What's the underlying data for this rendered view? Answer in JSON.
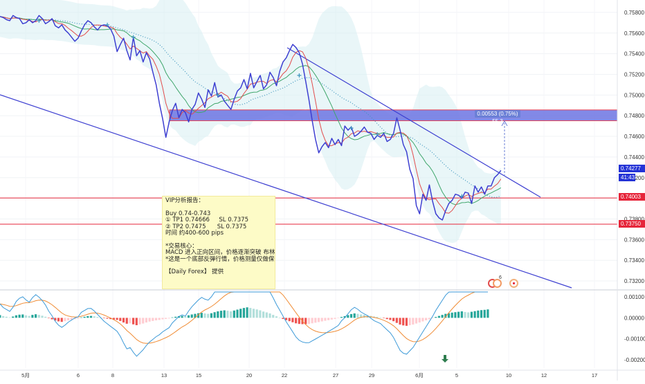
{
  "chart_data": [
    {
      "type": "line",
      "title": "",
      "price_axis": {
        "ticks": [
          "0.75800",
          "0.75600",
          "0.75400",
          "0.75200",
          "0.75000",
          "0.74800",
          "0.74600",
          "0.74400",
          "0.74200",
          "0.74000",
          "0.73800",
          "0.73600",
          "0.73400",
          "0.73200"
        ],
        "range": [
          0.7312,
          0.7592
        ]
      },
      "time_axis": {
        "ticks": [
          "5月",
          "6",
          "8",
          "13",
          "15",
          "20",
          "22",
          "27",
          "29",
          "6月",
          "5",
          "10",
          "12",
          "17"
        ]
      },
      "series": [
        {
          "values": [
            0.7576,
            0.7575,
            0.7573,
            0.7572,
            0.7577,
            0.7575,
            0.7574,
            0.7569,
            0.757,
            0.7573,
            0.757,
            0.7572,
            0.7577,
            0.7574,
            0.7569,
            0.7571,
            0.7574,
            0.7567,
            0.7565,
            0.7568,
            0.7563,
            0.756,
            0.7556,
            0.7552,
            0.7555,
            0.7562,
            0.7568,
            0.7572,
            0.757,
            0.7566,
            0.7563,
            0.7567,
            0.7568,
            0.7567,
            0.7564,
            0.7557,
            0.7542,
            0.7549,
            0.7555,
            0.7543,
            0.7534,
            0.7556,
            0.7538,
            0.7543,
            0.7532,
            0.7541,
            0.7535,
            0.7522,
            0.751,
            0.7492,
            0.7477,
            0.7459,
            0.7474,
            0.7485,
            0.7492,
            0.7478,
            0.7486,
            0.7483,
            0.7474,
            0.7486,
            0.7491,
            0.7502,
            0.7496,
            0.7488,
            0.7505,
            0.7499,
            0.7512,
            0.7498,
            0.75,
            0.7494,
            0.749,
            0.7486,
            0.7496,
            0.7504,
            0.7507,
            0.7515,
            0.7506,
            0.7521,
            0.7507,
            0.7513,
            0.7519,
            0.7506,
            0.751,
            0.7522,
            0.7517,
            0.7509,
            0.7523,
            0.7532,
            0.7536,
            0.7543,
            0.7549,
            0.7546,
            0.7541,
            0.753,
            0.7513,
            0.7495,
            0.7475,
            0.7457,
            0.7444,
            0.745,
            0.7454,
            0.7449,
            0.7458,
            0.7452,
            0.7457,
            0.7451,
            0.747,
            0.7466,
            0.7469,
            0.746,
            0.7462,
            0.7465,
            0.7469,
            0.7464,
            0.7463,
            0.7457,
            0.7461,
            0.7459,
            0.7463,
            0.7455,
            0.7457,
            0.7463,
            0.7478,
            0.7466,
            0.7452,
            0.7445,
            0.7428,
            0.7419,
            0.7393,
            0.7385,
            0.7404,
            0.7398,
            0.7413,
            0.7397,
            0.7385,
            0.7381,
            0.7379,
            0.7388,
            0.7395,
            0.7398,
            0.7404,
            0.7403,
            0.74,
            0.7406,
            0.7405,
            0.7395,
            0.7412,
            0.7406,
            0.7411,
            0.7404,
            0.7412,
            0.7412,
            0.742,
            0.7423,
            0.7427
          ],
          "color": "#3d3fd1"
        },
        {
          "type": "moving-average",
          "color": "#e24b4b"
        },
        {
          "type": "moving-average",
          "color": "#3fa66b"
        },
        {
          "type": "moving-average-dotted",
          "color": "#3d95bd"
        }
      ],
      "horizontal_lines": [
        {
          "value": 0.74003,
          "label": "0.74003",
          "color": "#e6253a"
        },
        {
          "value": 0.7375,
          "label": "0.73750",
          "color": "#e6253a"
        }
      ],
      "last_price": {
        "label": "0.74277",
        "countdown": "41:43",
        "color": "#2433d6"
      },
      "zone": {
        "from": 0.74751,
        "to": 0.74856,
        "color": "#6d75e3"
      },
      "measurement": {
        "label": "0.00553 (0.75%) 55.3"
      },
      "markers": {
        "badge_count": "6"
      }
    },
    {
      "type": "bar",
      "title": "",
      "ylim": [
        -0.0024,
        0.0013
      ],
      "axis_ticks": [
        "0.00100",
        "0.00000",
        "-0.00100",
        "-0.00200"
      ],
      "histogram_colors": {
        "positive_growing": "#26a69a",
        "positive_falling": "#b2dfdb",
        "negative_falling": "#ef5350",
        "negative_rising": "#ffcdd2"
      },
      "histogram": [
        0.00013,
        8e-05,
        5e-05,
        2e-05,
        6e-05,
        0.00012,
        0.00015,
        0.00016,
        0.00012,
        9e-05,
        0.00014,
        0.00017,
        0.00014,
        0.0001,
        5e-05,
        -2e-05,
        -7e-05,
        -0.00013,
        -0.00017,
        -0.00019,
        -0.00016,
        -0.00012,
        -9e-05,
        -6e-05,
        -4e-05,
        2e-05,
        5e-05,
        8e-05,
        9e-05,
        7e-05,
        4e-05,
        1e-05,
        -2e-05,
        -4e-05,
        -6e-05,
        -8e-05,
        -0.0001,
        -0.00015,
        -0.00022,
        -0.00028,
        -0.00026,
        -0.00031,
        -0.00035,
        -0.00031,
        -0.00027,
        -0.00022,
        -0.00018,
        -0.00015,
        -0.00012,
        -0.0001,
        -7e-05,
        -5e-05,
        -3e-05,
        2e-05,
        5e-05,
        8e-05,
        9e-05,
        7e-05,
        0.00012,
        0.00016,
        0.00019,
        0.00022,
        0.00024,
        0.00021,
        0.00019,
        0.00022,
        0.00027,
        0.00031,
        0.00034,
        0.00036,
        0.00034,
        0.00031,
        0.00035,
        0.00039,
        0.00043,
        0.00047,
        0.0005,
        0.00047,
        0.00043,
        0.0004,
        0.00036,
        0.0003,
        0.00026,
        0.00021,
        0.00014,
        7e-05,
        1e-05,
        -5e-05,
        -0.00011,
        -0.00016,
        -0.00021,
        -0.00026,
        -0.00029,
        -0.0003,
        -0.0003,
        -0.00029,
        -0.00026,
        -0.00023,
        -0.0002,
        -0.00017,
        -0.00014,
        -0.00011,
        -8e-05,
        -5e-05,
        -2e-05,
        4e-05,
        8e-05,
        0.00013,
        0.00018,
        0.00021,
        0.00019,
        0.00016,
        0.00014,
        0.00012,
        9e-05,
        6e-05,
        4e-05,
        2e-05,
        -2e-05,
        -6e-05,
        -0.0001,
        -0.00016,
        -0.00024,
        -0.00032,
        -0.00036,
        -0.00038,
        -0.00035,
        -0.00032,
        -0.00027,
        -0.00022,
        -0.00017,
        -0.00012,
        -7e-05,
        -2e-05,
        4e-05,
        9e-05,
        0.00014,
        0.00019,
        0.00022,
        0.00025,
        0.00027,
        0.00029,
        0.00031,
        0.00028,
        0.00026,
        0.00029,
        0.00032,
        0.00035,
        0.00037,
        0.00038,
        0.0004
      ],
      "macd_color": "#3d9ad8",
      "signal_color": "#f08c35"
    }
  ],
  "note": {
    "lines": [
      "VIP分析报告：",
      "",
      "Buy 0.74-0.743",
      "① TP1 0.74666     SL 0.7375",
      "② TP2 0.7475      SL 0.7375",
      "时间 约400-600 pips",
      "",
      "*交易核心：",
      "MACD 进入正向区间，价格逐渐突破 布林中轴",
      "*这是一个底部反弹行情，价格测量仅做保守测算",
      "",
      "【Daily Forex】 提供"
    ]
  }
}
